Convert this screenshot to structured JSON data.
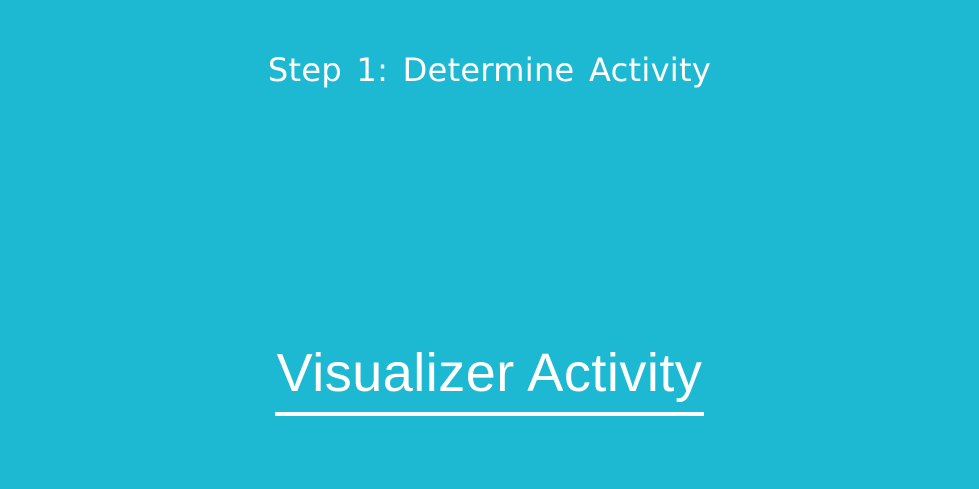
{
  "slide": {
    "step_title": "Step 1:  Determine Activity",
    "main_title": "Visualizer Activity",
    "background_color": "#1db9d3",
    "text_color": "#ffffff"
  }
}
